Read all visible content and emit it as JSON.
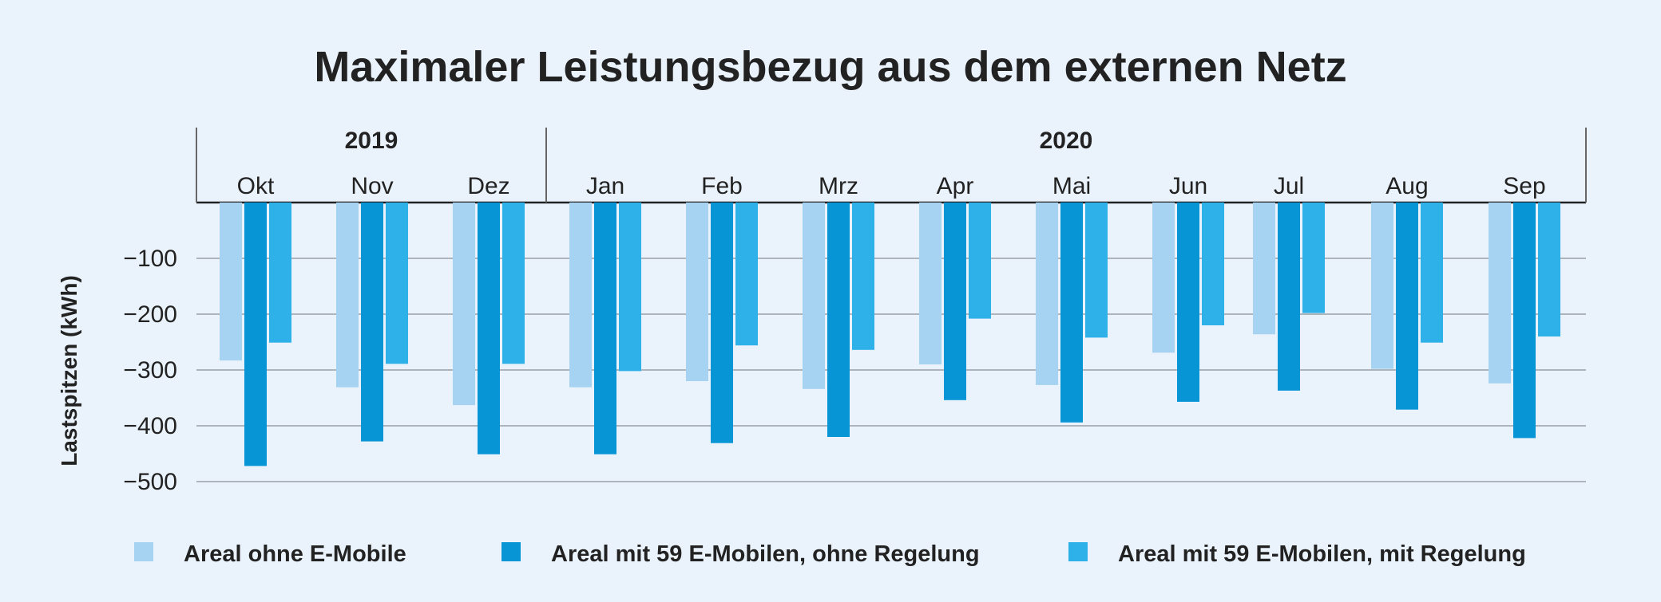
{
  "chart_data": {
    "type": "bar",
    "title": "Maximaler Leistungsbezug aus dem externen Netz",
    "ylabel": "Lastspitzen (kWh)",
    "xlabel": "",
    "ylim": [
      -500,
      0
    ],
    "yticks": [
      -100,
      -200,
      -300,
      -400,
      -500
    ],
    "ytick_labels": [
      "−100",
      "−200",
      "−300",
      "−400",
      "−500"
    ],
    "grid": true,
    "legend_position": "bottom",
    "years": [
      {
        "label": "2019",
        "start_index": 0,
        "end_index": 2
      },
      {
        "label": "2020",
        "start_index": 3,
        "end_index": 11
      }
    ],
    "categories": [
      "Okt",
      "Nov",
      "Dez",
      "Jan",
      "Feb",
      "Mrz",
      "Apr",
      "Mai",
      "Jun",
      "Jul",
      "Aug",
      "Sep"
    ],
    "series": [
      {
        "name": "Areal ohne E-Mobile",
        "color": "#a6d3f2",
        "values": [
          -283,
          -331,
          -363,
          -331,
          -320,
          -334,
          -290,
          -327,
          -269,
          -236,
          -298,
          -324
        ]
      },
      {
        "name": "Areal mit 59 E-Mobilen, ohne Regelung",
        "color": "#0795d6",
        "values": [
          -472,
          -428,
          -451,
          -451,
          -431,
          -420,
          -354,
          -394,
          -357,
          -337,
          -371,
          -422
        ]
      },
      {
        "name": "Areal mit 59 E-Mobilen, mit Regelung",
        "color": "#2eb0e8",
        "values": [
          -251,
          -289,
          -289,
          -302,
          -256,
          -264,
          -208,
          -242,
          -220,
          -198,
          -251,
          -240
        ]
      }
    ]
  }
}
